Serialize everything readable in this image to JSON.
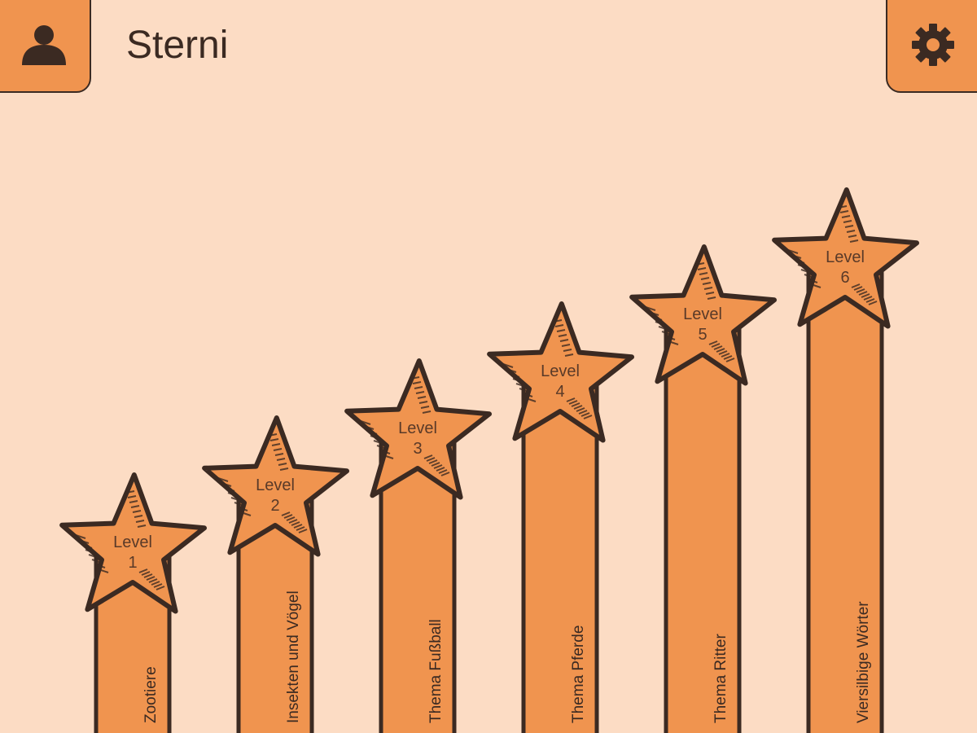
{
  "header": {
    "title": "Sterni",
    "profile_icon": "person-icon",
    "settings_icon": "gear-icon"
  },
  "colors": {
    "background": "#fcdcc4",
    "accent": "#f0944f",
    "outline": "#3b2a22"
  },
  "levels": [
    {
      "label": "Level",
      "number": "1",
      "topic": "Zootiere"
    },
    {
      "label": "Level",
      "number": "2",
      "topic": "Insekten und Vögel"
    },
    {
      "label": "Level",
      "number": "3",
      "topic": "Thema Fußball"
    },
    {
      "label": "Level",
      "number": "4",
      "topic": "Thema Pferde"
    },
    {
      "label": "Level",
      "number": "5",
      "topic": "Thema Ritter"
    },
    {
      "label": "Level",
      "number": "6",
      "topic": "Viersilbige Wörter"
    }
  ]
}
